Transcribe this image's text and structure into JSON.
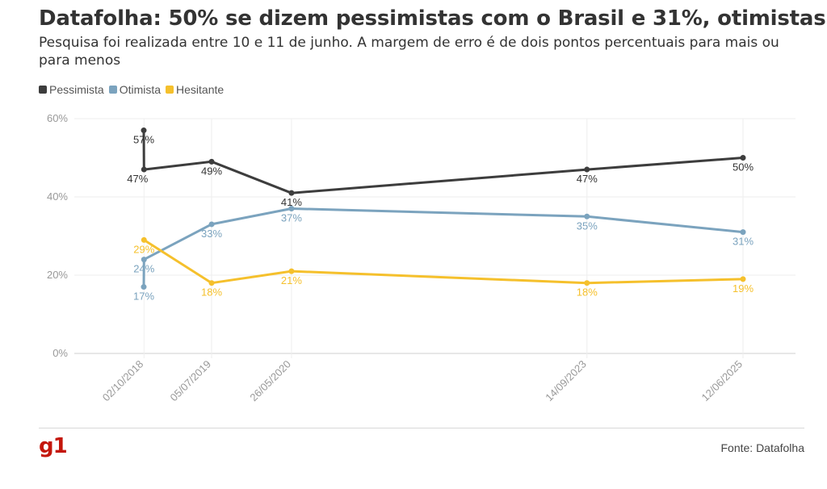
{
  "header": {
    "title": "Datafolha: 50% se dizem pessimistas com o Brasil e 31%, otimistas",
    "subtitle": "Pesquisa foi realizada entre 10 e 11 de junho. A margem de erro é de dois pontos percentuais para mais ou para menos"
  },
  "footer": {
    "logo": "g1",
    "source": "Fonte: Datafolha"
  },
  "chart_data": {
    "type": "line",
    "title": "Datafolha: 50% se dizem pessimistas com o Brasil e 31%, otimistas",
    "subtitle": "Pesquisa foi realizada entre 10 e 11 de junho. A margem de erro é de dois pontos percentuais para mais ou para menos",
    "xlabel": "",
    "ylabel": "",
    "ylim": [
      0,
      60
    ],
    "yticks": [
      "0%",
      "20%",
      "40%",
      "60%"
    ],
    "xticks": [
      "02/10/2018",
      "05/07/2019",
      "26/05/2020",
      "14/09/2023",
      "12/06/2025"
    ],
    "x": [
      "2018-10-01",
      "2018-10-02",
      "2019-07-05",
      "2020-05-26",
      "2023-09-14",
      "2025-06-12"
    ],
    "grid": true,
    "legend_position": "top-left",
    "series": [
      {
        "name": "Pessimista",
        "color": "#3d3d3d",
        "values": [
          57,
          47,
          49,
          41,
          47,
          50
        ],
        "labels": [
          "57%",
          "47%",
          "49%",
          "41%",
          "47%",
          "50%"
        ]
      },
      {
        "name": "Otimista",
        "color": "#7ba3be",
        "values": [
          17,
          24,
          33,
          37,
          35,
          31
        ],
        "labels": [
          "17%",
          "24%",
          "33%",
          "37%",
          "35%",
          "31%"
        ]
      },
      {
        "name": "Hesitante",
        "color": "#f5c02c",
        "values": [
          null,
          29,
          18,
          21,
          18,
          19
        ],
        "labels": [
          "",
          "29%",
          "18%",
          "21%",
          "18%",
          "19%"
        ]
      }
    ]
  }
}
